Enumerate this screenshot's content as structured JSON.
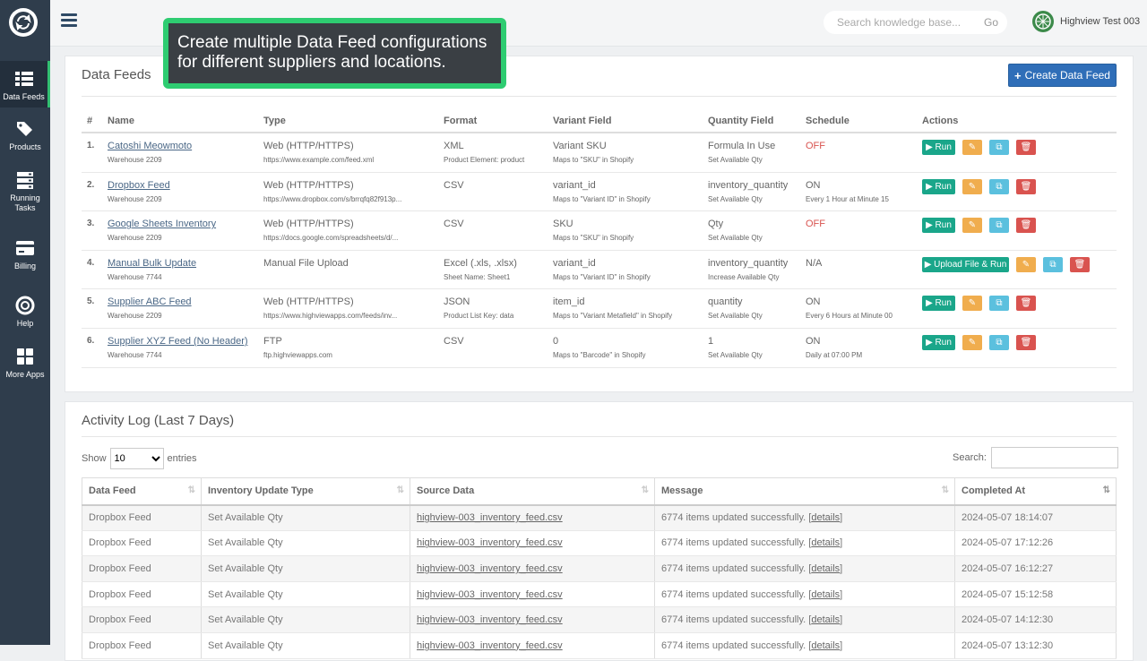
{
  "topbar": {
    "search_placeholder": "Search knowledge base...",
    "search_go": "Go",
    "user_name": "Highview Test 003"
  },
  "sidebar": {
    "items": [
      {
        "label": "Data Feeds",
        "icon": "list-icon"
      },
      {
        "label": "Products",
        "icon": "tags-icon"
      },
      {
        "label": "Running Tasks",
        "icon": "server-icon"
      },
      {
        "label": "Billing",
        "icon": "credit-card-icon"
      },
      {
        "label": "Help",
        "icon": "lifebuoy-icon"
      },
      {
        "label": "More Apps",
        "icon": "grid-icon"
      }
    ]
  },
  "tooltip": {
    "text": "Create multiple Data Feed configurations for different suppliers and locations."
  },
  "feeds_panel": {
    "title": "Data Feeds",
    "create_label": "Create Data Feed",
    "headers": [
      "#",
      "Name",
      "Type",
      "Format",
      "Variant Field",
      "Quantity Field",
      "Schedule",
      "Actions"
    ],
    "rows": [
      {
        "num": "1.",
        "name": "Catoshi Meowmoto",
        "warehouse": "Warehouse 2209",
        "type": "Web (HTTP/HTTPS)",
        "type_sub": "https://www.example.com/feed.xml",
        "format": "XML",
        "format_sub": "Product Element: product",
        "variant": "Variant SKU",
        "variant_sub": "Maps to \"SKU\" in Shopify",
        "qty": "Formula In Use",
        "qty_sub": "Set Available Qty",
        "schedule": "OFF",
        "schedule_sub": "",
        "schedule_status": "off",
        "run_label": "Run"
      },
      {
        "num": "2.",
        "name": "Dropbox Feed",
        "warehouse": "Warehouse 2209",
        "type": "Web (HTTP/HTTPS)",
        "type_sub": "https://www.dropbox.com/s/brrqfq82f913p...",
        "format": "CSV",
        "format_sub": "",
        "variant": "variant_id",
        "variant_sub": "Maps to \"Variant ID\" in Shopify",
        "qty": "inventory_quantity",
        "qty_sub": "Set Available Qty",
        "schedule": "ON",
        "schedule_sub": "Every 1 Hour at Minute 15",
        "schedule_status": "on",
        "run_label": "Run"
      },
      {
        "num": "3.",
        "name": "Google Sheets Inventory",
        "warehouse": "Warehouse 2209",
        "type": "Web (HTTP/HTTPS)",
        "type_sub": "https://docs.google.com/spreadsheets/d/...",
        "format": "CSV",
        "format_sub": "",
        "variant": "SKU",
        "variant_sub": "Maps to \"SKU\" in Shopify",
        "qty": "Qty",
        "qty_sub": "Set Available Qty",
        "schedule": "OFF",
        "schedule_sub": "",
        "schedule_status": "off",
        "run_label": "Run"
      },
      {
        "num": "4.",
        "name": "Manual Bulk Update",
        "warehouse": "Warehouse 7744",
        "type": "Manual File Upload",
        "type_sub": "",
        "format": "Excel (.xls, .xlsx)",
        "format_sub": "Sheet Name: Sheet1",
        "variant": "variant_id",
        "variant_sub": "Maps to \"Variant ID\" in Shopify",
        "qty": "inventory_quantity",
        "qty_sub": "Increase Available Qty",
        "schedule": "N/A",
        "schedule_sub": "",
        "schedule_status": "na",
        "run_label": "Upload File & Run"
      },
      {
        "num": "5.",
        "name": "Supplier ABC Feed",
        "warehouse": "Warehouse 2209",
        "type": "Web (HTTP/HTTPS)",
        "type_sub": "https://www.highviewapps.com/feeds/inv...",
        "format": "JSON",
        "format_sub": "Product List Key: data",
        "variant": "item_id",
        "variant_sub": "Maps to \"Variant Metafield\" in Shopify",
        "qty": "quantity",
        "qty_sub": "Set Available Qty",
        "schedule": "ON",
        "schedule_sub": "Every 6 Hours at Minute 00",
        "schedule_status": "on",
        "run_label": "Run"
      },
      {
        "num": "6.",
        "name": "Supplier XYZ Feed (No Header)",
        "warehouse": "Warehouse 7744",
        "type": "FTP",
        "type_sub": "ftp.highviewapps.com",
        "format": "CSV",
        "format_sub": "",
        "variant": "0",
        "variant_sub": "Maps to \"Barcode\" in Shopify",
        "qty": "1",
        "qty_sub": "Set Available Qty",
        "schedule": "ON",
        "schedule_sub": "Daily at 07:00 PM",
        "schedule_status": "on",
        "run_label": "Run"
      }
    ]
  },
  "log_panel": {
    "title": "Activity Log (Last 7 Days)",
    "show_label": "Show",
    "entries_label": "entries",
    "page_size": "10",
    "search_label": "Search:",
    "headers": [
      "Data Feed",
      "Inventory Update Type",
      "Source Data",
      "Message",
      "Completed At"
    ],
    "rows": [
      {
        "feed": "Dropbox Feed",
        "type": "Set Available Qty",
        "source": "highview-003_inventory_feed.csv",
        "message": "6774 items updated successfully. [",
        "details": "details",
        "close": "]",
        "completed": "2024-05-07 18:14:07"
      },
      {
        "feed": "Dropbox Feed",
        "type": "Set Available Qty",
        "source": "highview-003_inventory_feed.csv",
        "message": "6774 items updated successfully. [",
        "details": "details",
        "close": "]",
        "completed": "2024-05-07 17:12:26"
      },
      {
        "feed": "Dropbox Feed",
        "type": "Set Available Qty",
        "source": "highview-003_inventory_feed.csv",
        "message": "6774 items updated successfully. [",
        "details": "details",
        "close": "]",
        "completed": "2024-05-07 16:12:27"
      },
      {
        "feed": "Dropbox Feed",
        "type": "Set Available Qty",
        "source": "highview-003_inventory_feed.csv",
        "message": "6774 items updated successfully. [",
        "details": "details",
        "close": "]",
        "completed": "2024-05-07 15:12:58"
      },
      {
        "feed": "Dropbox Feed",
        "type": "Set Available Qty",
        "source": "highview-003_inventory_feed.csv",
        "message": "6774 items updated successfully. [",
        "details": "details",
        "close": "]",
        "completed": "2024-05-07 14:12:30"
      },
      {
        "feed": "Dropbox Feed",
        "type": "Set Available Qty",
        "source": "highview-003_inventory_feed.csv",
        "message": "6774 items updated successfully. [",
        "details": "details",
        "close": "]",
        "completed": "2024-05-07 13:12:30"
      }
    ]
  }
}
